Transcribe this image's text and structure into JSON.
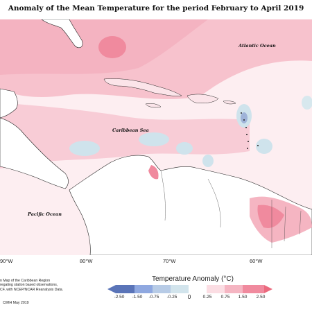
{
  "title": "Anomaly of the Mean Temperature for the period February to April 2019",
  "labels": {
    "atlantic": "Atlantic Ocean",
    "caribbean": "Caribbean Sea",
    "pacific": "Pacific Ocean"
  },
  "longitudes": [
    "90°W",
    "80°W",
    "70°W",
    "60°W"
  ],
  "notes": {
    "line1": "n Map of the Caribbean Region",
    "line2": "regating station based observations,",
    "line3": "CF, with NCEP/NCAR Reanalysis Data.",
    "credit": "CIMH May 2019"
  },
  "legend": {
    "title": "Temperature Anomaly (°C)",
    "ticks": [
      "-2.50",
      "-1.50",
      "-0.75",
      "-0.25",
      "0",
      "0.25",
      "0.75",
      "1.50",
      "2.50"
    ],
    "colors": [
      "#5a74b8",
      "#8fa8e0",
      "#b7cbe6",
      "#d2e4ec",
      "#ffffff",
      "#fbdde3",
      "#f5b5c2",
      "#f08a9e",
      "#eb6a7e"
    ]
  }
}
